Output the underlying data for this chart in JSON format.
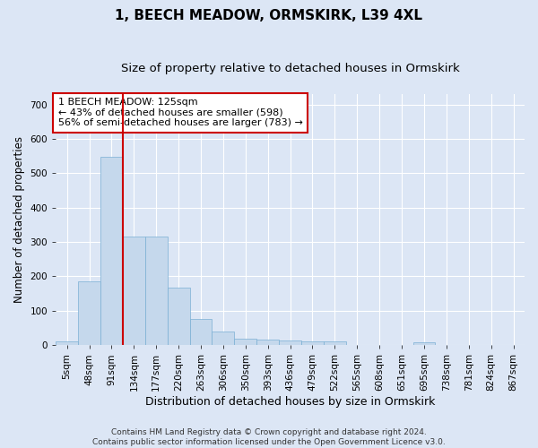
{
  "title": "1, BEECH MEADOW, ORMSKIRK, L39 4XL",
  "subtitle": "Size of property relative to detached houses in Ormskirk",
  "xlabel": "Distribution of detached houses by size in Ormskirk",
  "ylabel": "Number of detached properties",
  "bin_labels": [
    "5sqm",
    "48sqm",
    "91sqm",
    "134sqm",
    "177sqm",
    "220sqm",
    "263sqm",
    "306sqm",
    "350sqm",
    "393sqm",
    "436sqm",
    "479sqm",
    "522sqm",
    "565sqm",
    "608sqm",
    "651sqm",
    "695sqm",
    "738sqm",
    "781sqm",
    "824sqm",
    "867sqm"
  ],
  "bar_heights": [
    10,
    185,
    548,
    315,
    315,
    168,
    77,
    40,
    18,
    17,
    13,
    12,
    12,
    0,
    0,
    0,
    8,
    0,
    0,
    0,
    0
  ],
  "bar_color": "#c5d8ec",
  "bar_edge_color": "#7aafd4",
  "background_color": "#dce6f5",
  "grid_color": "#ffffff",
  "annotation_text": "1 BEECH MEADOW: 125sqm\n← 43% of detached houses are smaller (598)\n56% of semi-detached houses are larger (783) →",
  "annotation_box_color": "#ffffff",
  "annotation_box_edge_color": "#cc0000",
  "vline_color": "#cc0000",
  "vline_x": 2.5,
  "ylim": [
    0,
    730
  ],
  "yticks": [
    0,
    100,
    200,
    300,
    400,
    500,
    600,
    700
  ],
  "footnote": "Contains HM Land Registry data © Crown copyright and database right 2024.\nContains public sector information licensed under the Open Government Licence v3.0.",
  "title_fontsize": 11,
  "subtitle_fontsize": 9.5,
  "xlabel_fontsize": 9,
  "ylabel_fontsize": 8.5,
  "tick_fontsize": 7.5,
  "annot_fontsize": 8,
  "footnote_fontsize": 6.5
}
